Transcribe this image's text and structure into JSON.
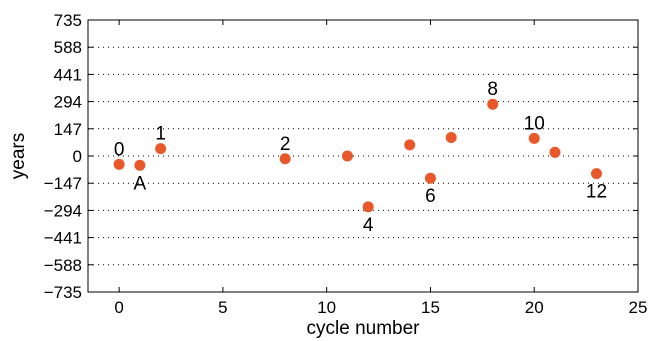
{
  "chart_data": {
    "type": "scatter",
    "title": "",
    "xlabel": "cycle number",
    "ylabel": "years",
    "xlim": [
      -1.5,
      25
    ],
    "ylim": [
      -735,
      735
    ],
    "xticks": [
      0,
      5,
      10,
      15,
      20,
      25
    ],
    "yticks": [
      735,
      588,
      441,
      294,
      147,
      0,
      -147,
      -294,
      -441,
      -588,
      -735
    ],
    "ytick_labels": [
      "735",
      "588",
      "441",
      "294",
      "147",
      "0",
      "−147",
      "−294",
      "−441",
      "−588",
      "−735"
    ],
    "grid": "dotted horizontal",
    "marker_color": "#e8582a",
    "points": [
      {
        "x": 0,
        "y": -45,
        "label": "0",
        "label_pos": "above"
      },
      {
        "x": 1,
        "y": -50,
        "label": "A",
        "label_pos": "below"
      },
      {
        "x": 2,
        "y": 40,
        "label": "1",
        "label_pos": "above"
      },
      {
        "x": 8,
        "y": -15,
        "label": "2",
        "label_pos": "above"
      },
      {
        "x": 11,
        "y": 0,
        "label": "",
        "label_pos": "none"
      },
      {
        "x": 12,
        "y": -275,
        "label": "4",
        "label_pos": "below"
      },
      {
        "x": 14,
        "y": 60,
        "label": "",
        "label_pos": "none"
      },
      {
        "x": 15,
        "y": -120,
        "label": "6",
        "label_pos": "below"
      },
      {
        "x": 16,
        "y": 100,
        "label": "",
        "label_pos": "none"
      },
      {
        "x": 18,
        "y": 280,
        "label": "8",
        "label_pos": "above"
      },
      {
        "x": 20,
        "y": 95,
        "label": "10",
        "label_pos": "above"
      },
      {
        "x": 21,
        "y": 20,
        "label": "",
        "label_pos": "none"
      },
      {
        "x": 23,
        "y": -95,
        "label": "12",
        "label_pos": "below"
      }
    ]
  }
}
